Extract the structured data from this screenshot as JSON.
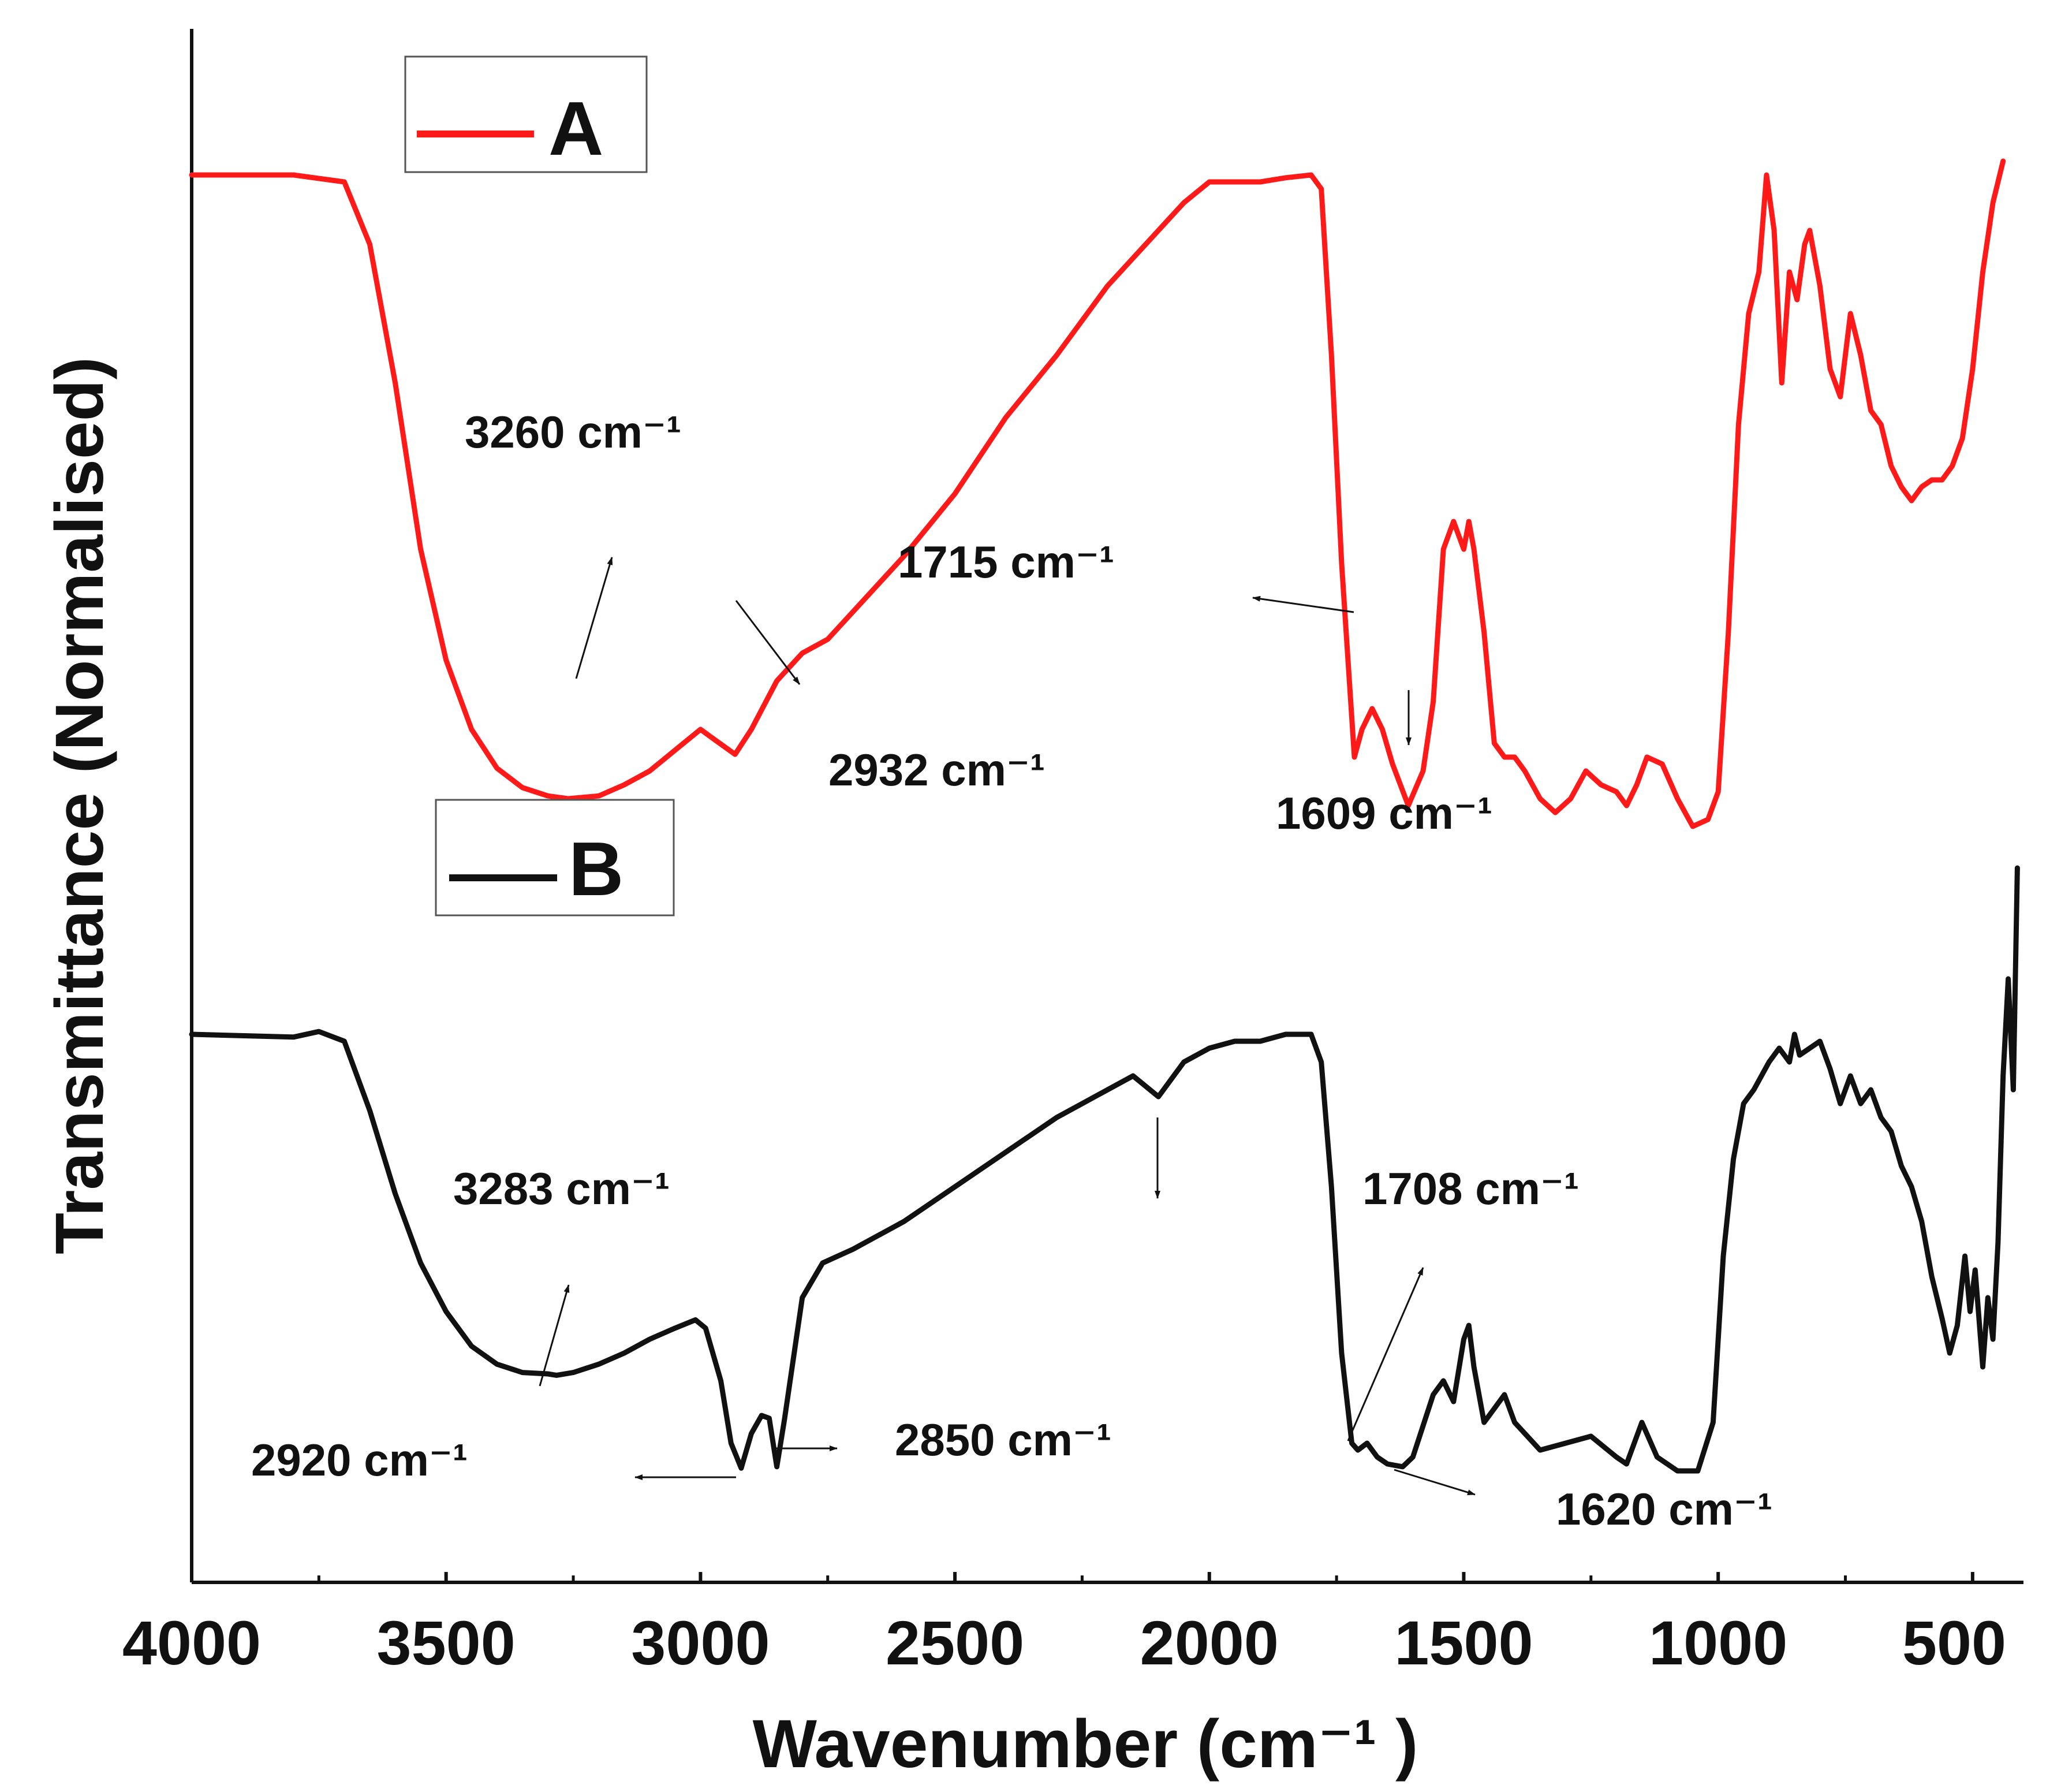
{
  "chart_data": {
    "type": "line",
    "title": "",
    "xlabel": "Wavenumber (cm⁻¹ )",
    "ylabel": "Transmittance (Normalised)",
    "xlim": [
      4000,
      400
    ],
    "ylim": [
      0,
      10
    ],
    "x_reversed": true,
    "x_ticks": [
      4000,
      3500,
      3000,
      2500,
      2000,
      1500,
      1000,
      500
    ],
    "x_tick_labels": [
      "4000",
      "3500",
      "3000",
      "2500",
      "2000",
      "1500",
      "1000",
      "500"
    ],
    "y_ticks_shown": false,
    "legend": [
      {
        "label": "A",
        "color": "#ff1a1a"
      },
      {
        "label": "B",
        "color": "#111111"
      }
    ],
    "series": [
      {
        "name": "A",
        "color": "#ff1a1a",
        "points": [
          [
            4000,
            9.3
          ],
          [
            3800,
            9.3
          ],
          [
            3700,
            9.25
          ],
          [
            3650,
            8.8
          ],
          [
            3600,
            7.8
          ],
          [
            3550,
            6.6
          ],
          [
            3500,
            5.8
          ],
          [
            3450,
            5.3
          ],
          [
            3400,
            5.02
          ],
          [
            3350,
            4.88
          ],
          [
            3300,
            4.82
          ],
          [
            3260,
            4.8
          ],
          [
            3200,
            4.82
          ],
          [
            3150,
            4.9
          ],
          [
            3100,
            5.0
          ],
          [
            3050,
            5.15
          ],
          [
            3000,
            5.3
          ],
          [
            2970,
            5.22
          ],
          [
            2932,
            5.12
          ],
          [
            2900,
            5.3
          ],
          [
            2850,
            5.65
          ],
          [
            2800,
            5.85
          ],
          [
            2750,
            5.95
          ],
          [
            2700,
            6.15
          ],
          [
            2600,
            6.55
          ],
          [
            2500,
            7.0
          ],
          [
            2400,
            7.55
          ],
          [
            2300,
            8.0
          ],
          [
            2200,
            8.5
          ],
          [
            2100,
            8.9
          ],
          [
            2050,
            9.1
          ],
          [
            2000,
            9.25
          ],
          [
            1950,
            9.25
          ],
          [
            1900,
            9.25
          ],
          [
            1850,
            9.28
          ],
          [
            1800,
            9.3
          ],
          [
            1780,
            9.2
          ],
          [
            1760,
            8.0
          ],
          [
            1740,
            6.5
          ],
          [
            1715,
            5.1
          ],
          [
            1700,
            5.3
          ],
          [
            1680,
            5.45
          ],
          [
            1660,
            5.3
          ],
          [
            1640,
            5.05
          ],
          [
            1609,
            4.75
          ],
          [
            1580,
            5.0
          ],
          [
            1560,
            5.5
          ],
          [
            1540,
            6.6
          ],
          [
            1520,
            6.8
          ],
          [
            1500,
            6.6
          ],
          [
            1490,
            6.8
          ],
          [
            1480,
            6.6
          ],
          [
            1460,
            6.0
          ],
          [
            1440,
            5.2
          ],
          [
            1420,
            5.1
          ],
          [
            1400,
            5.1
          ],
          [
            1380,
            5.0
          ],
          [
            1350,
            4.8
          ],
          [
            1320,
            4.7
          ],
          [
            1290,
            4.8
          ],
          [
            1260,
            5.0
          ],
          [
            1230,
            4.9
          ],
          [
            1200,
            4.85
          ],
          [
            1180,
            4.75
          ],
          [
            1160,
            4.9
          ],
          [
            1140,
            5.1
          ],
          [
            1110,
            5.05
          ],
          [
            1080,
            4.8
          ],
          [
            1050,
            4.6
          ],
          [
            1020,
            4.65
          ],
          [
            1000,
            4.85
          ],
          [
            980,
            6.0
          ],
          [
            960,
            7.5
          ],
          [
            940,
            8.3
          ],
          [
            920,
            8.6
          ],
          [
            905,
            9.3
          ],
          [
            890,
            8.9
          ],
          [
            875,
            7.8
          ],
          [
            860,
            8.6
          ],
          [
            845,
            8.4
          ],
          [
            830,
            8.8
          ],
          [
            820,
            8.9
          ],
          [
            800,
            8.5
          ],
          [
            780,
            7.9
          ],
          [
            760,
            7.7
          ],
          [
            740,
            8.3
          ],
          [
            720,
            8.0
          ],
          [
            700,
            7.6
          ],
          [
            680,
            7.5
          ],
          [
            660,
            7.2
          ],
          [
            640,
            7.05
          ],
          [
            620,
            6.95
          ],
          [
            600,
            7.05
          ],
          [
            580,
            7.1
          ],
          [
            560,
            7.1
          ],
          [
            540,
            7.2
          ],
          [
            520,
            7.4
          ],
          [
            500,
            7.9
          ],
          [
            480,
            8.6
          ],
          [
            460,
            9.1
          ],
          [
            440,
            9.4
          ]
        ]
      },
      {
        "name": "B",
        "color": "#111111",
        "points": [
          [
            4000,
            3.1
          ],
          [
            3800,
            3.08
          ],
          [
            3750,
            3.12
          ],
          [
            3700,
            3.05
          ],
          [
            3650,
            2.55
          ],
          [
            3600,
            1.95
          ],
          [
            3550,
            1.45
          ],
          [
            3500,
            1.1
          ],
          [
            3450,
            0.85
          ],
          [
            3400,
            0.72
          ],
          [
            3350,
            0.66
          ],
          [
            3300,
            0.65
          ],
          [
            3283,
            0.64
          ],
          [
            3250,
            0.66
          ],
          [
            3200,
            0.72
          ],
          [
            3150,
            0.8
          ],
          [
            3100,
            0.9
          ],
          [
            3050,
            0.98
          ],
          [
            3010,
            1.04
          ],
          [
            2990,
            0.98
          ],
          [
            2960,
            0.6
          ],
          [
            2940,
            0.15
          ],
          [
            2920,
            -0.03
          ],
          [
            2900,
            0.22
          ],
          [
            2880,
            0.35
          ],
          [
            2865,
            0.33
          ],
          [
            2850,
            -0.02
          ],
          [
            2835,
            0.32
          ],
          [
            2800,
            1.2
          ],
          [
            2760,
            1.45
          ],
          [
            2700,
            1.55
          ],
          [
            2600,
            1.75
          ],
          [
            2500,
            2.0
          ],
          [
            2400,
            2.25
          ],
          [
            2300,
            2.5
          ],
          [
            2200,
            2.7
          ],
          [
            2150,
            2.8
          ],
          [
            2100,
            2.65
          ],
          [
            2050,
            2.9
          ],
          [
            2000,
            3.0
          ],
          [
            1950,
            3.05
          ],
          [
            1900,
            3.05
          ],
          [
            1850,
            3.1
          ],
          [
            1800,
            3.1
          ],
          [
            1780,
            2.9
          ],
          [
            1760,
            2.0
          ],
          [
            1740,
            0.8
          ],
          [
            1720,
            0.15
          ],
          [
            1708,
            0.1
          ],
          [
            1690,
            0.15
          ],
          [
            1670,
            0.05
          ],
          [
            1650,
            0.0
          ],
          [
            1620,
            -0.02
          ],
          [
            1600,
            0.05
          ],
          [
            1560,
            0.5
          ],
          [
            1540,
            0.6
          ],
          [
            1520,
            0.45
          ],
          [
            1500,
            0.9
          ],
          [
            1490,
            1.0
          ],
          [
            1480,
            0.7
          ],
          [
            1460,
            0.3
          ],
          [
            1440,
            0.4
          ],
          [
            1420,
            0.5
          ],
          [
            1400,
            0.3
          ],
          [
            1350,
            0.1
          ],
          [
            1300,
            0.15
          ],
          [
            1250,
            0.2
          ],
          [
            1200,
            0.05
          ],
          [
            1180,
            0.0
          ],
          [
            1150,
            0.3
          ],
          [
            1120,
            0.05
          ],
          [
            1080,
            -0.05
          ],
          [
            1040,
            -0.05
          ],
          [
            1010,
            0.3
          ],
          [
            990,
            1.5
          ],
          [
            970,
            2.2
          ],
          [
            950,
            2.6
          ],
          [
            930,
            2.7
          ],
          [
            900,
            2.9
          ],
          [
            880,
            3.0
          ],
          [
            860,
            2.9
          ],
          [
            850,
            3.1
          ],
          [
            840,
            2.95
          ],
          [
            820,
            3.0
          ],
          [
            800,
            3.05
          ],
          [
            780,
            2.85
          ],
          [
            760,
            2.6
          ],
          [
            740,
            2.8
          ],
          [
            720,
            2.6
          ],
          [
            700,
            2.7
          ],
          [
            680,
            2.5
          ],
          [
            660,
            2.4
          ],
          [
            640,
            2.15
          ],
          [
            620,
            2.0
          ],
          [
            600,
            1.75
          ],
          [
            580,
            1.35
          ],
          [
            560,
            1.05
          ],
          [
            545,
            0.8
          ],
          [
            530,
            1.0
          ],
          [
            515,
            1.5
          ],
          [
            505,
            1.1
          ],
          [
            495,
            1.4
          ],
          [
            480,
            0.7
          ],
          [
            470,
            1.2
          ],
          [
            460,
            0.9
          ],
          [
            450,
            1.6
          ],
          [
            440,
            2.8
          ],
          [
            430,
            3.5
          ],
          [
            420,
            2.7
          ],
          [
            412,
            4.3
          ]
        ]
      }
    ],
    "annotations": [
      {
        "series": "A",
        "text": "3260 cm⁻¹",
        "x": 3260,
        "y": 4.8
      },
      {
        "series": "A",
        "text": "2932 cm⁻¹",
        "x": 2932,
        "y": 5.12
      },
      {
        "series": "A",
        "text": "1715 cm⁻¹",
        "x": 1715,
        "y": 5.1
      },
      {
        "series": "A",
        "text": "1609 cm⁻¹",
        "x": 1609,
        "y": 4.75
      },
      {
        "series": "B",
        "text": "3283 cm⁻¹",
        "x": 3283,
        "y": 0.64
      },
      {
        "series": "B",
        "text": "2920 cm⁻¹",
        "x": 2920,
        "y": -0.03
      },
      {
        "series": "B",
        "text": "2850 cm⁻¹",
        "x": 2850,
        "y": -0.02
      },
      {
        "series": "B",
        "text": "1708 cm⁻¹",
        "x": 1708,
        "y": 0.1
      },
      {
        "series": "B",
        "text": "1620 cm⁻¹",
        "x": 1620,
        "y": -0.02
      }
    ]
  }
}
